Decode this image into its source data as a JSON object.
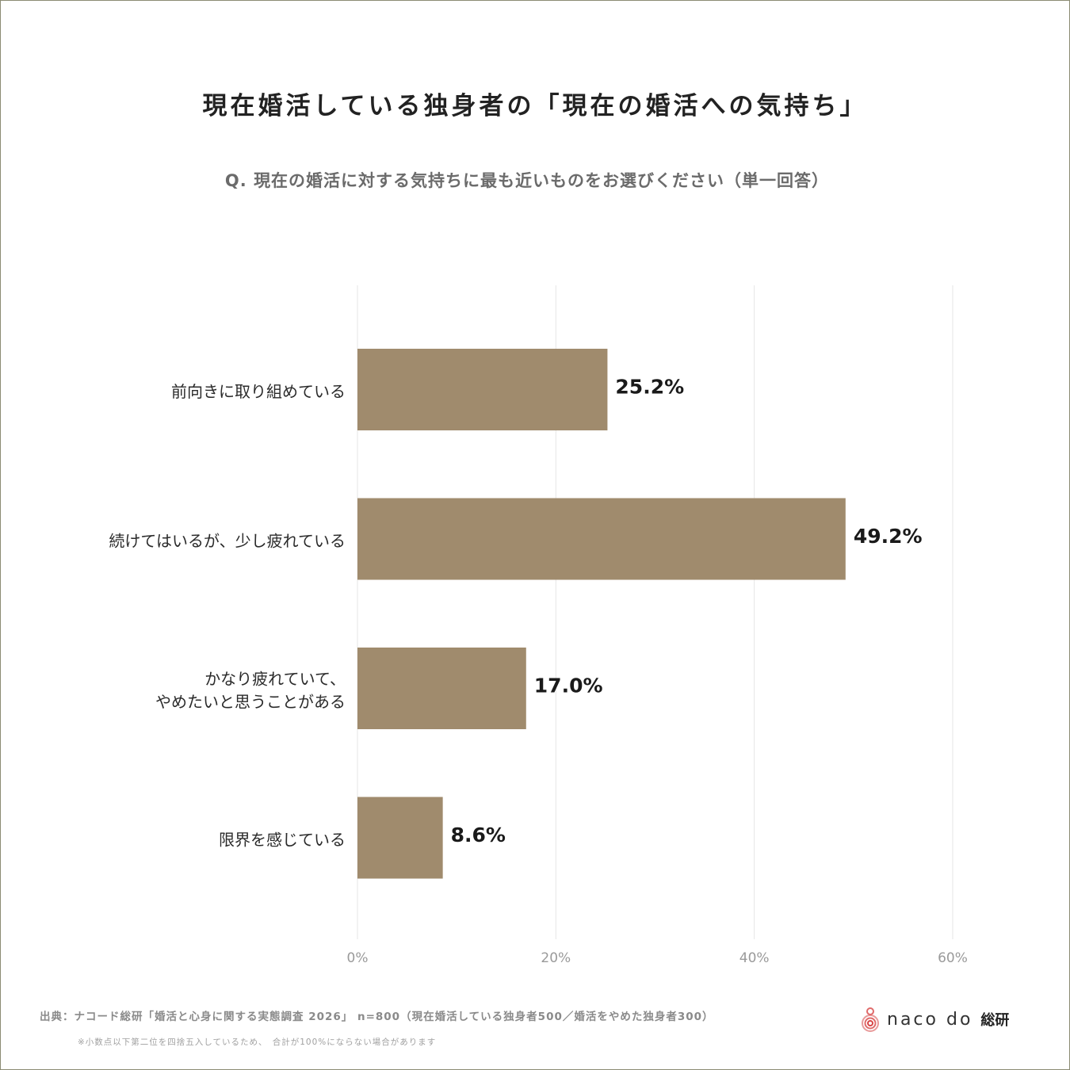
{
  "header": {
    "title": "現在婚活している独身者の「現在の婚活への気持ち」",
    "subtitle": "Q. 現在の婚活に対する気持ちに最も近いものをお選びください（単一回答）"
  },
  "chart_data": {
    "type": "bar",
    "orientation": "horizontal",
    "categories": [
      [
        "前向きに取り組めている"
      ],
      [
        "続けてはいるが、少し疲れている"
      ],
      [
        "かなり疲れていて、",
        "やめたいと思うことがある"
      ],
      [
        "限界を感じている"
      ]
    ],
    "values": [
      25.2,
      49.2,
      17.0,
      8.6
    ],
    "value_labels": [
      "25.2%",
      "49.2%",
      "17.0%",
      "8.6%"
    ],
    "xlim": [
      0,
      60
    ],
    "xticks": [
      0,
      20,
      40,
      60
    ],
    "xtick_labels": [
      "0%",
      "20%",
      "40%",
      "60%"
    ],
    "grid": "vertical",
    "bar_color": "#a08b6d"
  },
  "footer": {
    "source": "出典：ナコード総研「婚活と心身に関する実態調査 2026」 n=800（現在婚活している独身者500／婚活をやめた独身者300）",
    "note": "※小数点以下第二位を四捨五入しているため、　合計が100%にならない場合があります",
    "logo_text": "naco do",
    "logo_suffix": "総研"
  }
}
